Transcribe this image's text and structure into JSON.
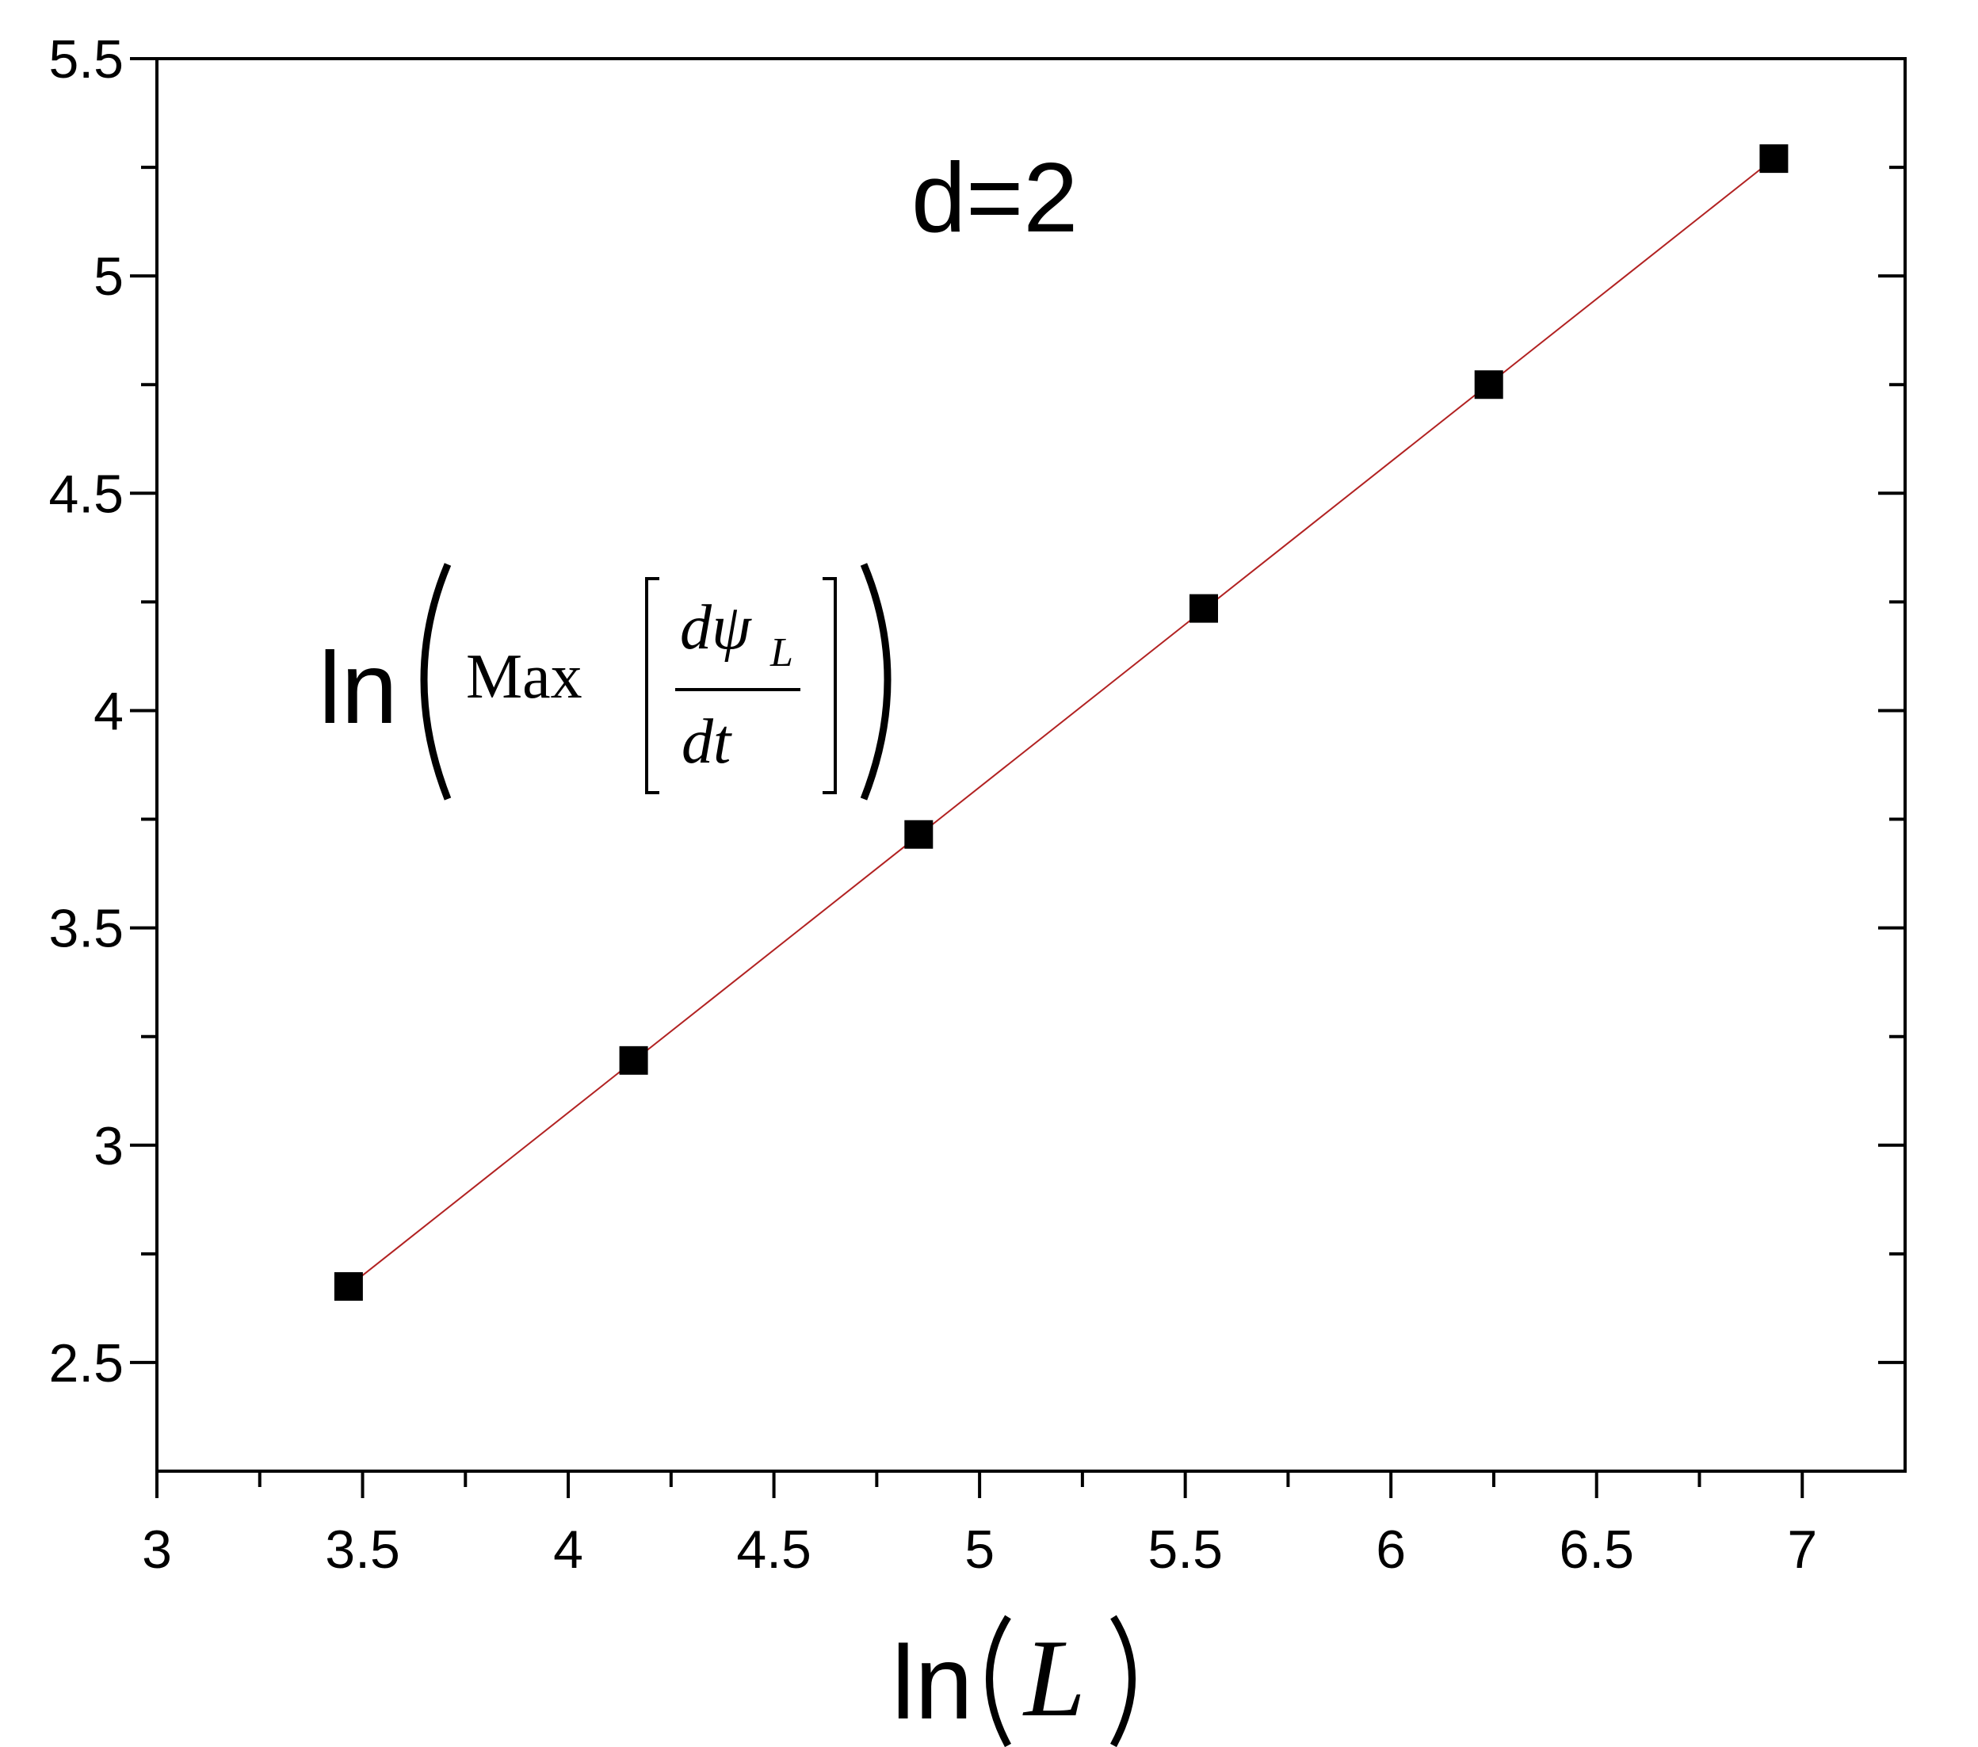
{
  "chart_data": {
    "type": "scatter",
    "title": "",
    "annotation": "d=2",
    "xlabel": {
      "prefix": "ln",
      "variable": "L"
    },
    "ylabel": {
      "prefix": "ln",
      "operator": "Max",
      "numerator_d": "d",
      "numerator_sym": "ψ",
      "numerator_sub": "L",
      "denominator": "dt"
    },
    "xlim": [
      3,
      7.25
    ],
    "ylim": [
      2.25,
      5.5
    ],
    "xticks": [
      3,
      3.5,
      4,
      4.5,
      5,
      5.5,
      6,
      6.5,
      7
    ],
    "xtick_labels": [
      "3",
      "3.5",
      "4",
      "4.5",
      "5",
      "5.5",
      "6",
      "6.5",
      "7"
    ],
    "yticks": [
      2.5,
      3,
      3.5,
      4,
      4.5,
      5,
      5.5
    ],
    "ytick_labels": [
      "2.5",
      "3",
      "3.5",
      "4",
      "4.5",
      "5",
      "5.5"
    ],
    "grid": false,
    "series": [
      {
        "marker": "square",
        "color": "#000000",
        "x": [
          3.466,
          4.159,
          4.852,
          5.545,
          6.238,
          6.931
        ],
        "y": [
          2.675,
          3.195,
          3.715,
          4.235,
          4.75,
          5.27
        ]
      }
    ],
    "fit_line": {
      "color": "#b22222",
      "x": [
        3.466,
        6.931
      ],
      "y": [
        2.675,
        5.27
      ]
    }
  }
}
